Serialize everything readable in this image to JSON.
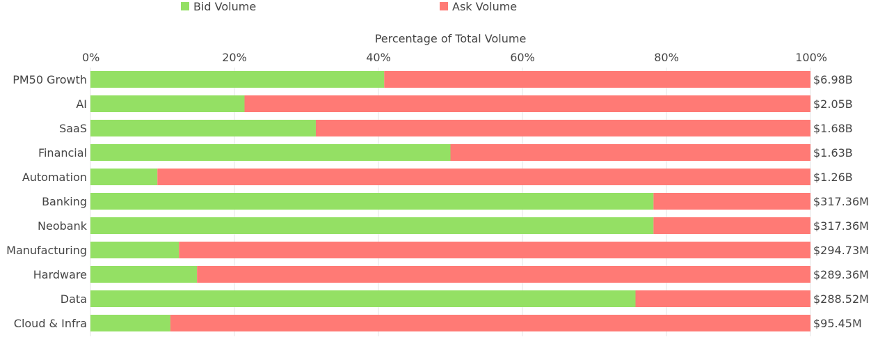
{
  "chart_data": {
    "type": "bar",
    "orientation": "horizontal",
    "stacked": "percent",
    "xlabel": "Percentage of Total Volume",
    "xlim": [
      0,
      100
    ],
    "x_ticks": [
      "0%",
      "20%",
      "40%",
      "60%",
      "80%",
      "100%"
    ],
    "grid": true,
    "legend_position": "top",
    "categories": [
      "PM50 Growth",
      "AI",
      "SaaS",
      "Financial",
      "Automation",
      "Banking",
      "Neobank",
      "Manufacturing",
      "Hardware",
      "Data",
      "Cloud & Infra"
    ],
    "series": [
      {
        "name": "Bid Volume",
        "color": "#94e064",
        "values": [
          40.8,
          21.4,
          31.3,
          50.0,
          9.3,
          78.2,
          78.2,
          12.3,
          14.8,
          75.7,
          11.1
        ]
      },
      {
        "name": "Ask Volume",
        "color": "#ff7a75",
        "values": [
          59.2,
          78.6,
          68.7,
          50.0,
          90.7,
          21.8,
          21.8,
          87.7,
          85.2,
          24.3,
          88.9
        ]
      }
    ],
    "totals": [
      "$6.98B",
      "$2.05B",
      "$1.68B",
      "$1.63B",
      "$1.26B",
      "$317.36M",
      "$317.36M",
      "$294.73M",
      "$289.36M",
      "$288.52M",
      "$95.45M"
    ]
  }
}
